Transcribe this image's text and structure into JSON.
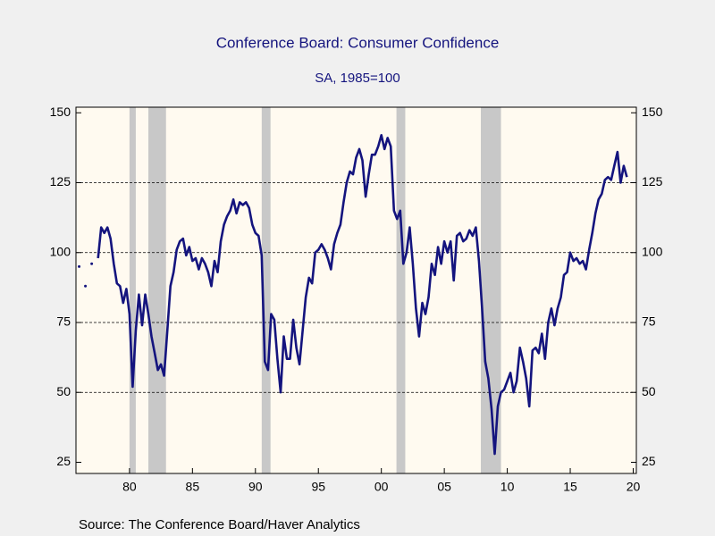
{
  "chart_data": {
    "type": "line",
    "title": "Conference Board: Consumer Confidence",
    "subtitle": "SA, 1985=100",
    "source": "Source:  The Conference Board/Haver Analytics",
    "x": [
      1976,
      1976.25,
      1976.5,
      1976.75,
      1977,
      1977.25,
      1977.5,
      1977.75,
      1978,
      1978.25,
      1978.5,
      1978.75,
      1979,
      1979.25,
      1979.5,
      1979.75,
      1980,
      1980.25,
      1980.5,
      1980.75,
      1981,
      1981.25,
      1981.5,
      1981.75,
      1982,
      1982.25,
      1982.5,
      1982.75,
      1983,
      1983.25,
      1983.5,
      1983.75,
      1984,
      1984.25,
      1984.5,
      1984.75,
      1985,
      1985.25,
      1985.5,
      1985.75,
      1986,
      1986.25,
      1986.5,
      1986.75,
      1987,
      1987.25,
      1987.5,
      1987.75,
      1988,
      1988.25,
      1988.5,
      1988.75,
      1989,
      1989.25,
      1989.5,
      1989.75,
      1990,
      1990.25,
      1990.5,
      1990.75,
      1991,
      1991.25,
      1991.5,
      1991.75,
      1992,
      1992.25,
      1992.5,
      1992.75,
      1993,
      1993.25,
      1993.5,
      1993.75,
      1994,
      1994.25,
      1994.5,
      1994.75,
      1995,
      1995.25,
      1995.5,
      1995.75,
      1996,
      1996.25,
      1996.5,
      1996.75,
      1997,
      1997.25,
      1997.5,
      1997.75,
      1998,
      1998.25,
      1998.5,
      1998.75,
      1999,
      1999.25,
      1999.5,
      1999.75,
      2000,
      2000.25,
      2000.5,
      2000.75,
      2001,
      2001.25,
      2001.5,
      2001.75,
      2002,
      2002.25,
      2002.5,
      2002.75,
      2003,
      2003.25,
      2003.5,
      2003.75,
      2004,
      2004.25,
      2004.5,
      2004.75,
      2005,
      2005.25,
      2005.5,
      2005.75,
      2006,
      2006.25,
      2006.5,
      2006.75,
      2007,
      2007.25,
      2007.5,
      2007.75,
      2008,
      2008.25,
      2008.5,
      2008.75,
      2009,
      2009.25,
      2009.5,
      2009.75,
      2010,
      2010.25,
      2010.5,
      2010.75,
      2011,
      2011.25,
      2011.5,
      2011.75,
      2012,
      2012.25,
      2012.5,
      2012.75,
      2013,
      2013.25,
      2013.5,
      2013.75,
      2014,
      2014.25,
      2014.5,
      2014.75,
      2015,
      2015.25,
      2015.5,
      2015.75,
      2016,
      2016.25,
      2016.5,
      2016.75,
      2017,
      2017.25,
      2017.5,
      2017.75,
      2018,
      2018.25,
      2018.5,
      2018.75,
      2019,
      2019.25,
      2019.5
    ],
    "series": [
      {
        "name": "Consumer Confidence",
        "color": "#14147e",
        "values": [
          95,
          null,
          88,
          null,
          96,
          null,
          98,
          109,
          107,
          109,
          105,
          96,
          89,
          88,
          82,
          87,
          78,
          52,
          72,
          85,
          74,
          85,
          78,
          70,
          64,
          58,
          60,
          56,
          72,
          88,
          93,
          101,
          104,
          105,
          99,
          102,
          97,
          98,
          94,
          98,
          96,
          93,
          88,
          97,
          93,
          104,
          110,
          113,
          115,
          119,
          114,
          118,
          117,
          118,
          116,
          110,
          107,
          106,
          99,
          61,
          58,
          78,
          76,
          62,
          50,
          70,
          62,
          62,
          76,
          66,
          60,
          72,
          84,
          91,
          89,
          100,
          101,
          103,
          101,
          98,
          94,
          103,
          107,
          110,
          118,
          125,
          129,
          128,
          134,
          137,
          133,
          120,
          128,
          135,
          135,
          138,
          142,
          137,
          141,
          138,
          115,
          112,
          115,
          96,
          100,
          109,
          96,
          80,
          70,
          82,
          78,
          84,
          96,
          92,
          102,
          96,
          104,
          100,
          104,
          90,
          106,
          107,
          104,
          105,
          108,
          106,
          109,
          97,
          80,
          61,
          55,
          44,
          28,
          45,
          50,
          51,
          54,
          57,
          50,
          54,
          66,
          61,
          55,
          45,
          65,
          66,
          64,
          71,
          62,
          75,
          80,
          74,
          80,
          84,
          92,
          93,
          100,
          97,
          98,
          96,
          97,
          94,
          101,
          107,
          114,
          119,
          121,
          126,
          127,
          126,
          131,
          136,
          125,
          131,
          127
        ]
      }
    ],
    "recessions": [
      [
        1980.0,
        1980.5
      ],
      [
        1981.5,
        1982.9
      ],
      [
        1990.5,
        1991.2
      ],
      [
        2001.2,
        2001.9
      ],
      [
        2007.9,
        2009.5
      ]
    ],
    "recession_color": "#c8c8c8",
    "xlim": [
      1975.75,
      2020.25
    ],
    "ylim": [
      21,
      152
    ],
    "yticks": [
      25,
      50,
      75,
      100,
      125,
      150
    ],
    "grid_lines": [
      50,
      75,
      100,
      125
    ],
    "xticks": [
      {
        "value": 1980,
        "label": "80"
      },
      {
        "value": 1985,
        "label": "85"
      },
      {
        "value": 1990,
        "label": "90"
      },
      {
        "value": 1995,
        "label": "95"
      },
      {
        "value": 2000,
        "label": "00"
      },
      {
        "value": 2005,
        "label": "05"
      },
      {
        "value": 2010,
        "label": "10"
      },
      {
        "value": 2015,
        "label": "15"
      },
      {
        "value": 2020,
        "label": "20"
      }
    ]
  }
}
